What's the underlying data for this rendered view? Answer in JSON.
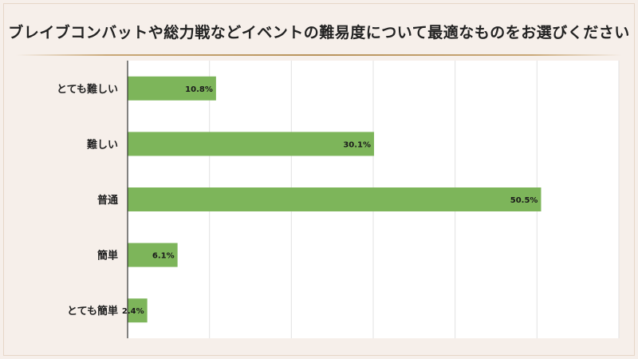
{
  "title": "ブレイブコンバットや総力戦などイベントの難易度について最適なものをお選びください",
  "chart_data": {
    "type": "bar",
    "orientation": "horizontal",
    "categories": [
      "とても難しい",
      "難しい",
      "普通",
      "簡単",
      "とても簡単"
    ],
    "values": [
      10.8,
      30.1,
      50.5,
      6.1,
      2.4
    ],
    "value_labels": [
      "10.8%",
      "30.1%",
      "50.5%",
      "6.1%",
      "2.4%"
    ],
    "xlim": [
      0,
      60
    ],
    "grid": true,
    "bar_color": "#7db55a"
  }
}
